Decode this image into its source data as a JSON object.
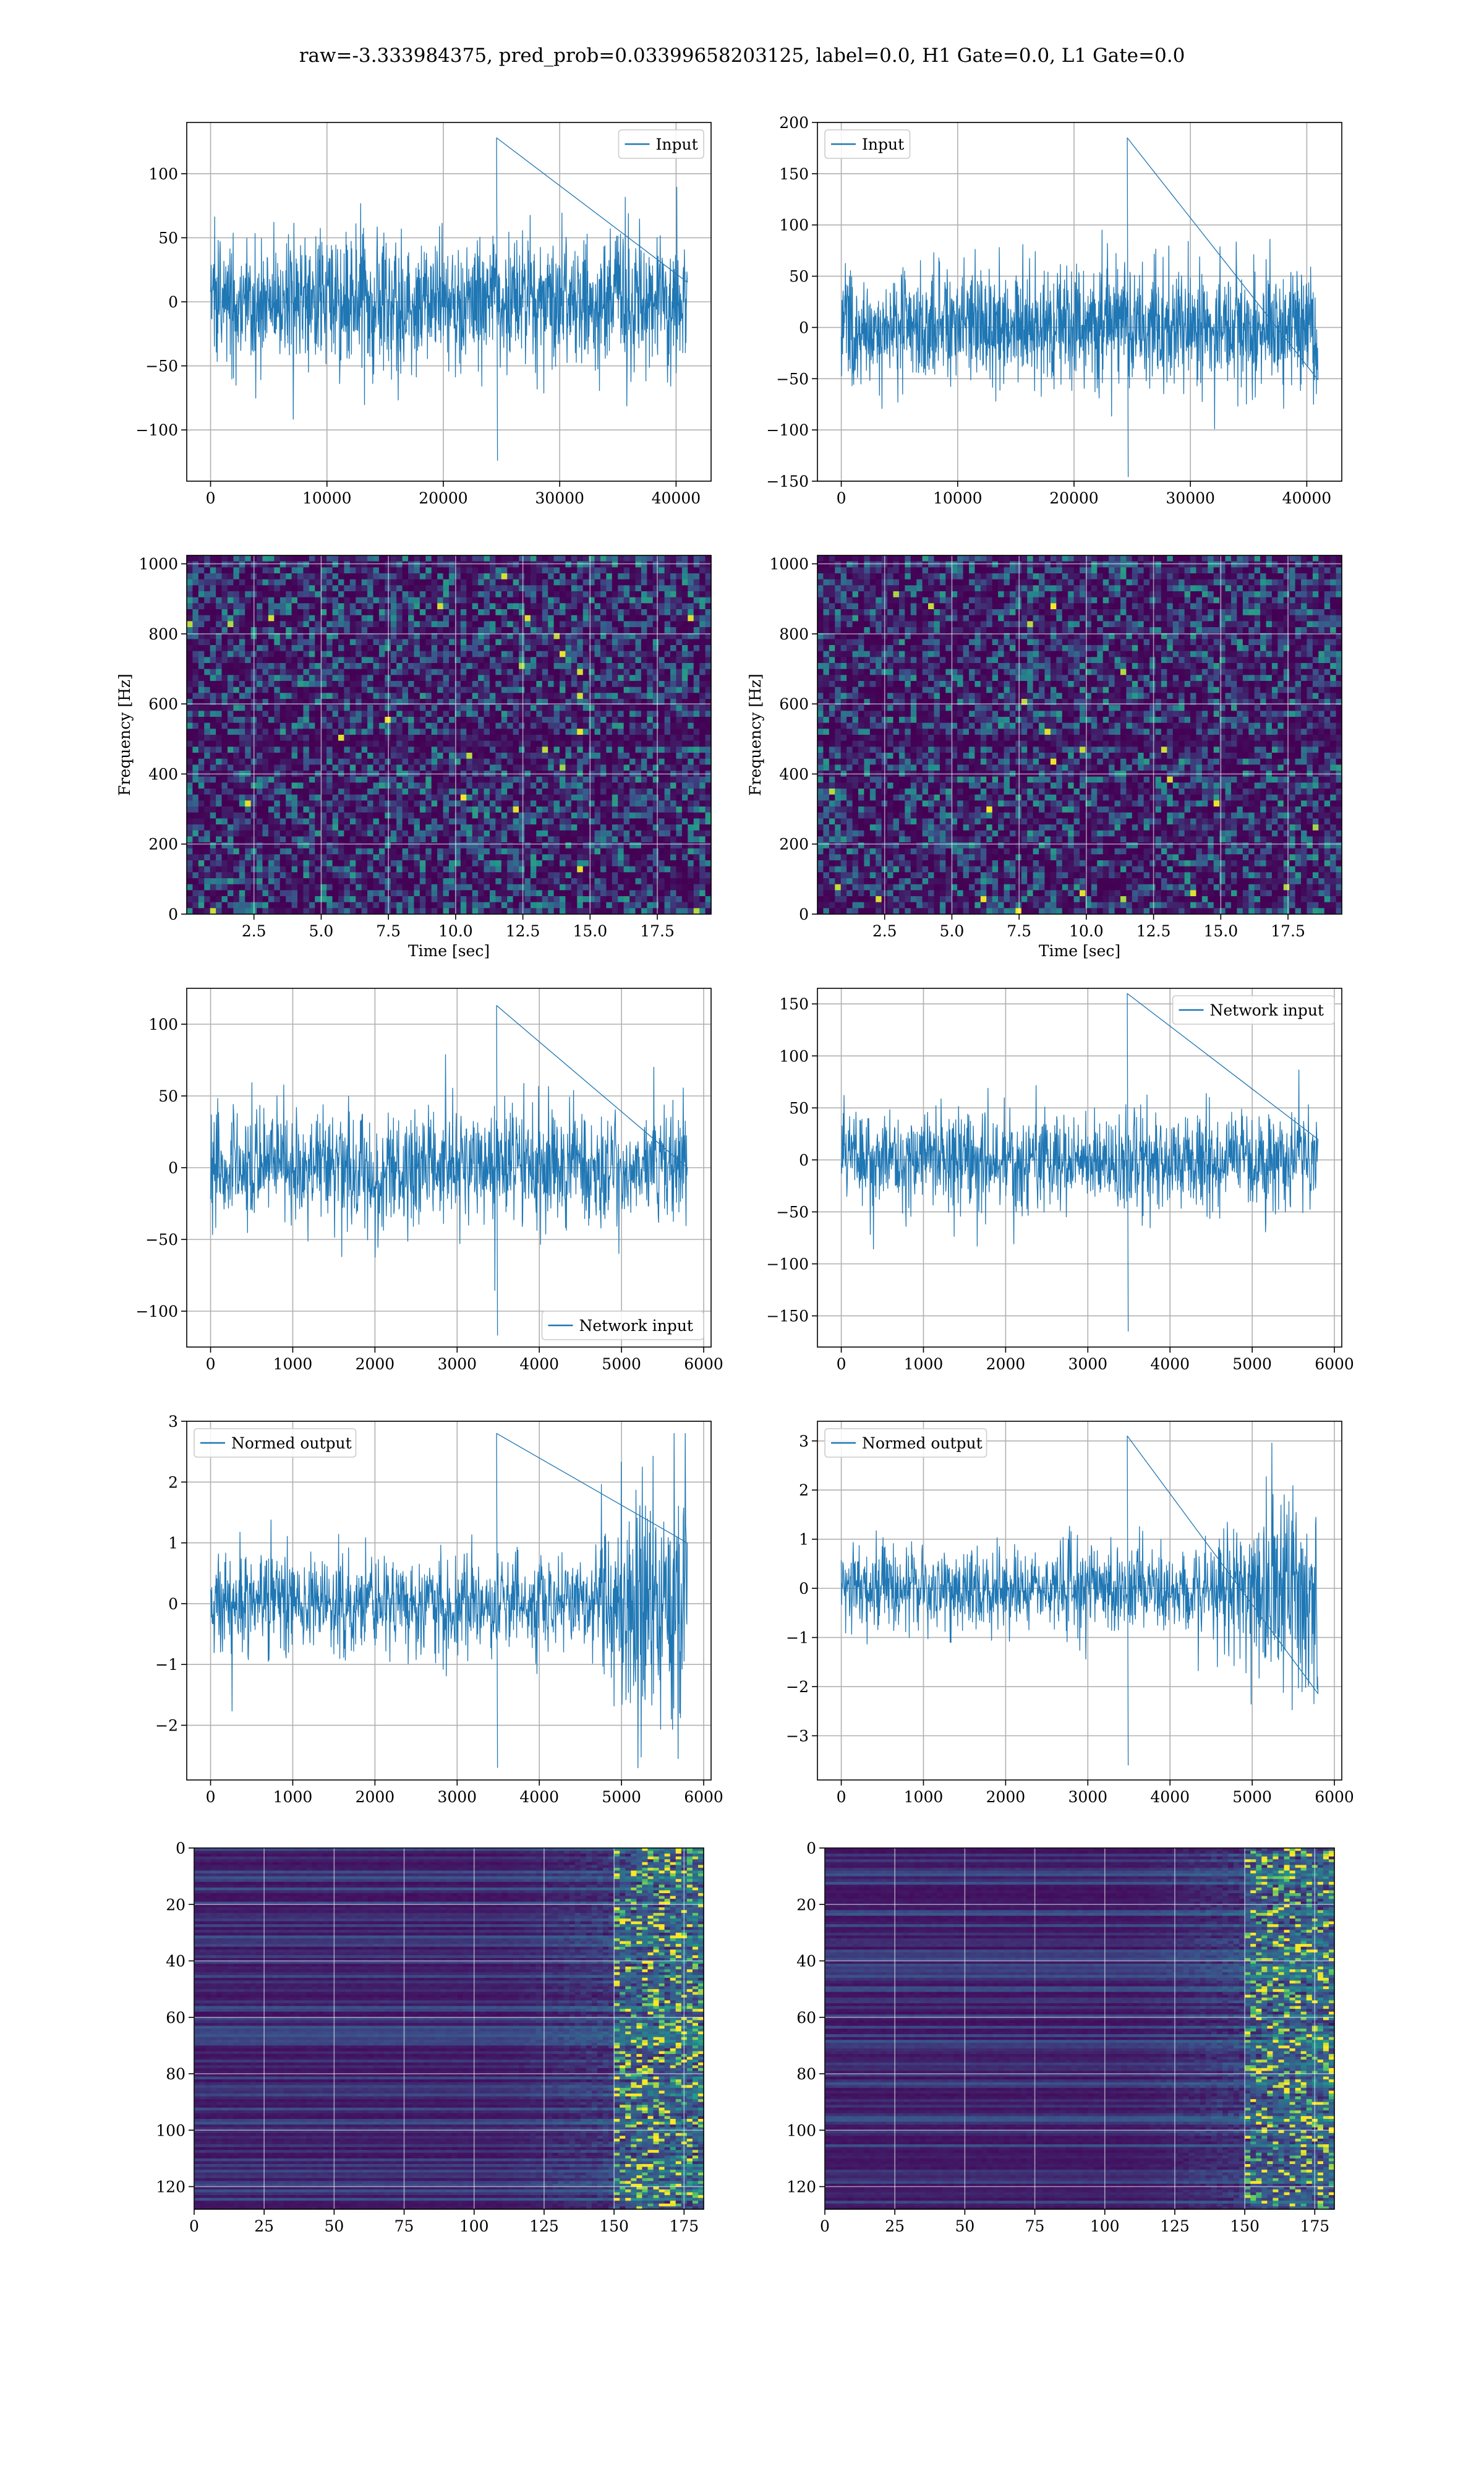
{
  "figure": {
    "title": "raw=-3.333984375, pred_prob=0.03399658203125, label=0.0, H1 Gate=0.0, L1 Gate=0.0"
  },
  "colors": {
    "line": "#1f77b4",
    "viridis_low": "#440154",
    "viridis_mid": "#21918c",
    "viridis_high": "#fde725"
  },
  "chart_data": [
    {
      "id": "r1c1",
      "type": "line",
      "series": [
        {
          "name": "Input"
        }
      ],
      "legend": "upper right",
      "xlim": [
        -2048,
        43008
      ],
      "ylim": [
        -140,
        140
      ],
      "xticks": [
        0,
        10000,
        20000,
        30000,
        40000
      ],
      "yticks": [
        -100,
        -50,
        0,
        50,
        100
      ],
      "signal": {
        "x_start": 0,
        "x_end": 40960,
        "n": 1500,
        "sigma": 24,
        "spike_max": 128,
        "spike_min": -124,
        "envelope": "flat"
      }
    },
    {
      "id": "r1c2",
      "type": "line",
      "series": [
        {
          "name": "Input"
        }
      ],
      "legend": "upper left",
      "xlim": [
        -2048,
        43008
      ],
      "ylim": [
        -150,
        200
      ],
      "xticks": [
        0,
        10000,
        20000,
        30000,
        40000
      ],
      "yticks": [
        -150,
        -100,
        -50,
        0,
        50,
        100,
        150,
        200
      ],
      "signal": {
        "x_start": 0,
        "x_end": 40960,
        "n": 1500,
        "sigma": 28,
        "spike_max": 185,
        "spike_min": -146,
        "envelope": "flat"
      }
    },
    {
      "id": "r2c1",
      "type": "heatmap",
      "colormap": "viridis",
      "xlabel": "Time [sec]",
      "ylabel": "Frequency [Hz]",
      "xlim": [
        0,
        19.5
      ],
      "ylim": [
        0,
        1024
      ],
      "xticks": [
        2.5,
        5.0,
        7.5,
        10.0,
        12.5,
        15.0,
        17.5
      ],
      "yticks": [
        0,
        200,
        400,
        600,
        800,
        1000
      ],
      "grid": true
    },
    {
      "id": "r2c2",
      "type": "heatmap",
      "colormap": "viridis",
      "xlabel": "Time [sec]",
      "ylabel": "Frequency [Hz]",
      "xlim": [
        0,
        19.5
      ],
      "ylim": [
        0,
        1024
      ],
      "xticks": [
        2.5,
        5.0,
        7.5,
        10.0,
        12.5,
        15.0,
        17.5
      ],
      "yticks": [
        0,
        200,
        400,
        600,
        800,
        1000
      ],
      "grid": true
    },
    {
      "id": "r3c1",
      "type": "line",
      "series": [
        {
          "name": "Network input"
        }
      ],
      "legend": "lower right",
      "xlim": [
        -290,
        6090
      ],
      "ylim": [
        -125,
        125
      ],
      "xticks": [
        0,
        1000,
        2000,
        3000,
        4000,
        5000,
        6000
      ],
      "yticks": [
        -100,
        -50,
        0,
        50,
        100
      ],
      "signal": {
        "x_start": 0,
        "x_end": 5800,
        "n": 1200,
        "sigma": 20,
        "spike_max": 113,
        "spike_min": -117,
        "envelope": "flat"
      }
    },
    {
      "id": "r3c2",
      "type": "line",
      "series": [
        {
          "name": "Network input"
        }
      ],
      "legend": "upper right",
      "xlim": [
        -290,
        6090
      ],
      "ylim": [
        -180,
        165
      ],
      "xticks": [
        0,
        1000,
        2000,
        3000,
        4000,
        5000,
        6000
      ],
      "yticks": [
        -150,
        -100,
        -50,
        0,
        50,
        100,
        150
      ],
      "signal": {
        "x_start": 0,
        "x_end": 5800,
        "n": 1200,
        "sigma": 23,
        "spike_max": 160,
        "spike_min": -165,
        "envelope": "flat"
      }
    },
    {
      "id": "r4c1",
      "type": "line",
      "series": [
        {
          "name": "Normed output"
        }
      ],
      "legend": "upper left",
      "xlim": [
        -290,
        6090
      ],
      "ylim": [
        -2.9,
        3.0
      ],
      "xticks": [
        0,
        1000,
        2000,
        3000,
        4000,
        5000,
        6000
      ],
      "yticks": [
        -2,
        -1,
        0,
        1,
        2,
        3
      ],
      "signal": {
        "x_start": 0,
        "x_end": 5800,
        "n": 1200,
        "sigma": 0.38,
        "spike_max": 2.8,
        "spike_min": -2.7,
        "envelope": "rise-end"
      }
    },
    {
      "id": "r4c2",
      "type": "line",
      "series": [
        {
          "name": "Normed output"
        }
      ],
      "legend": "upper left",
      "xlim": [
        -290,
        6090
      ],
      "ylim": [
        -3.9,
        3.4
      ],
      "xticks": [
        0,
        1000,
        2000,
        3000,
        4000,
        5000,
        6000
      ],
      "yticks": [
        -3,
        -2,
        -1,
        0,
        1,
        2,
        3
      ],
      "signal": {
        "x_start": 0,
        "x_end": 5800,
        "n": 1200,
        "sigma": 0.42,
        "spike_max": 3.1,
        "spike_min": -3.6,
        "envelope": "rise-end"
      }
    },
    {
      "id": "r5c1",
      "type": "heatmap",
      "colormap": "viridis",
      "xlim": [
        0,
        182
      ],
      "ylim": [
        128,
        0
      ],
      "xticks": [
        0,
        25,
        50,
        75,
        100,
        125,
        150,
        175
      ],
      "yticks": [
        0,
        20,
        40,
        60,
        80,
        100,
        120
      ],
      "grid": true
    },
    {
      "id": "r5c2",
      "type": "heatmap",
      "colormap": "viridis",
      "xlim": [
        0,
        182
      ],
      "ylim": [
        128,
        0
      ],
      "xticks": [
        0,
        25,
        50,
        75,
        100,
        125,
        150,
        175
      ],
      "yticks": [
        0,
        20,
        40,
        60,
        80,
        100,
        120
      ],
      "grid": true
    }
  ]
}
